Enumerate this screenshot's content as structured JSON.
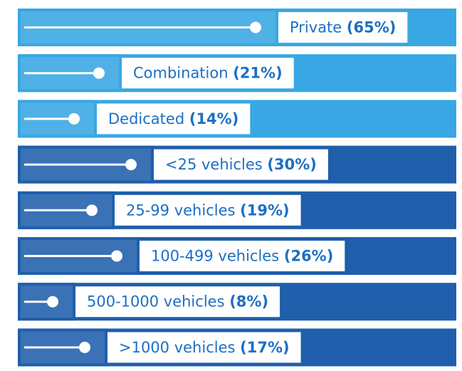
{
  "chart_data": {
    "type": "bar",
    "categories": [
      "Private",
      "Combination",
      "Dedicated",
      "<25 vehicles",
      "25-99 vehicles",
      "100-499 vehicles",
      "500-1000 vehicles",
      ">1000 vehicles"
    ],
    "values": [
      65,
      21,
      14,
      30,
      19,
      26,
      8,
      17
    ],
    "value_labels": [
      "(65%)",
      "(21%)",
      "(14%)",
      "(30%)",
      "(19%)",
      "(26%)",
      "(8%)",
      "(17%)"
    ],
    "colors": [
      "#38a7e3",
      "#38a7e3",
      "#38a7e3",
      "#1f5fab",
      "#1f5fab",
      "#1f5fab",
      "#1f5fab",
      "#1f5fab"
    ],
    "text_color": "#1c6fc4"
  }
}
